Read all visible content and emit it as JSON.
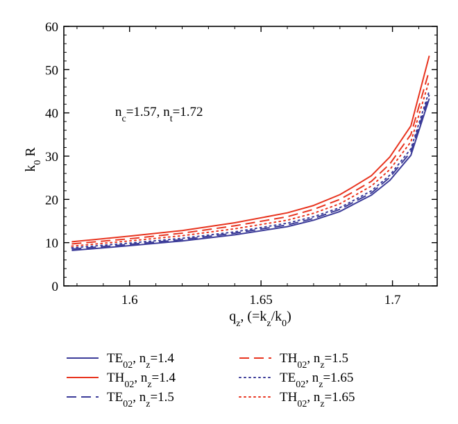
{
  "chart_data": {
    "type": "line",
    "xlabel": {
      "main": "q",
      "sub": "z",
      "rest1": ", (=k",
      "sub2": "z",
      "rest2": "/k",
      "sub3": "0",
      "rest3": ")"
    },
    "ylabel": {
      "main": "k",
      "sub": "0",
      "rest": " R"
    },
    "xlim": [
      1.575,
      1.717
    ],
    "ylim": [
      0,
      60
    ],
    "xticks": [
      1.6,
      1.65,
      1.7
    ],
    "xtick_labels": [
      "1.6",
      "1.65",
      "1.7"
    ],
    "yticks": [
      0,
      10,
      20,
      30,
      40,
      50,
      60
    ],
    "ytick_labels": [
      "0",
      "10",
      "20",
      "30",
      "40",
      "50",
      "60"
    ],
    "annotation": {
      "n1": "n",
      "s1": "c",
      "v1": "=1.57, ",
      "n2": "n",
      "s2": "t",
      "v2": "=1.72"
    },
    "legend_placement": "bottom",
    "grid": false,
    "series": [
      {
        "name": {
          "base": "TE",
          "sub": "02",
          "mid": ", n",
          "sub2": "z",
          "val": "=1.4"
        },
        "color": "#3b3b98",
        "style": "solid",
        "x": [
          1.578,
          1.6,
          1.62,
          1.64,
          1.66,
          1.67,
          1.68,
          1.685,
          1.692,
          1.699,
          1.707,
          1.714
        ],
        "y": [
          8.2,
          9.3,
          10.4,
          11.8,
          13.7,
          15.2,
          17.2,
          18.8,
          21.0,
          24.4,
          30.2,
          43.3
        ]
      },
      {
        "name": {
          "base": "TH",
          "sub": "02",
          "mid": ", n",
          "sub2": "z",
          "val": "=1.4"
        },
        "color": "#e8331e",
        "style": "solid",
        "x": [
          1.578,
          1.6,
          1.62,
          1.64,
          1.66,
          1.67,
          1.68,
          1.685,
          1.692,
          1.699,
          1.707,
          1.714
        ],
        "y": [
          10.2,
          11.5,
          12.8,
          14.6,
          16.9,
          18.6,
          21.1,
          22.9,
          25.5,
          29.8,
          37.0,
          53.2
        ]
      },
      {
        "name": {
          "base": "TE",
          "sub": "02",
          "mid": ", n",
          "sub2": "z",
          "val": "=1.5"
        },
        "color": "#3b3b98",
        "style": "dashed",
        "x": [
          1.578,
          1.6,
          1.62,
          1.64,
          1.66,
          1.67,
          1.68,
          1.685,
          1.692,
          1.699,
          1.707,
          1.714
        ],
        "y": [
          8.5,
          9.6,
          10.7,
          12.2,
          14.1,
          15.6,
          17.7,
          19.3,
          21.5,
          25.1,
          31.0,
          44.2
        ]
      },
      {
        "name": {
          "base": "TH",
          "sub": "02",
          "mid": ", n",
          "sub2": "z",
          "val": "=1.5"
        },
        "color": "#e8331e",
        "style": "dashed",
        "x": [
          1.578,
          1.6,
          1.62,
          1.64,
          1.66,
          1.67,
          1.68,
          1.685,
          1.692,
          1.699,
          1.707,
          1.714
        ],
        "y": [
          9.7,
          10.9,
          12.2,
          13.9,
          16.0,
          17.7,
          20.0,
          21.7,
          24.2,
          28.2,
          35.0,
          49.8
        ]
      },
      {
        "name": {
          "base": "TE",
          "sub": "02",
          "mid": ", n",
          "sub2": "z",
          "val": "=1.65"
        },
        "color": "#3b3b98",
        "style": "dotted",
        "x": [
          1.578,
          1.6,
          1.62,
          1.64,
          1.66,
          1.67,
          1.68,
          1.685,
          1.692,
          1.699,
          1.707,
          1.714
        ],
        "y": [
          8.8,
          9.9,
          11.0,
          12.5,
          14.5,
          16.0,
          18.1,
          19.7,
          22.0,
          25.6,
          31.7,
          45.1
        ]
      },
      {
        "name": {
          "base": "TH",
          "sub": "02",
          "mid": ", n",
          "sub2": "z",
          "val": "=1.65"
        },
        "color": "#e8331e",
        "style": "dotted",
        "x": [
          1.578,
          1.6,
          1.62,
          1.64,
          1.66,
          1.67,
          1.68,
          1.685,
          1.692,
          1.699,
          1.707,
          1.714
        ],
        "y": [
          9.2,
          10.4,
          11.6,
          13.2,
          15.2,
          16.8,
          19.0,
          20.7,
          23.1,
          26.9,
          33.3,
          47.5
        ]
      }
    ]
  }
}
